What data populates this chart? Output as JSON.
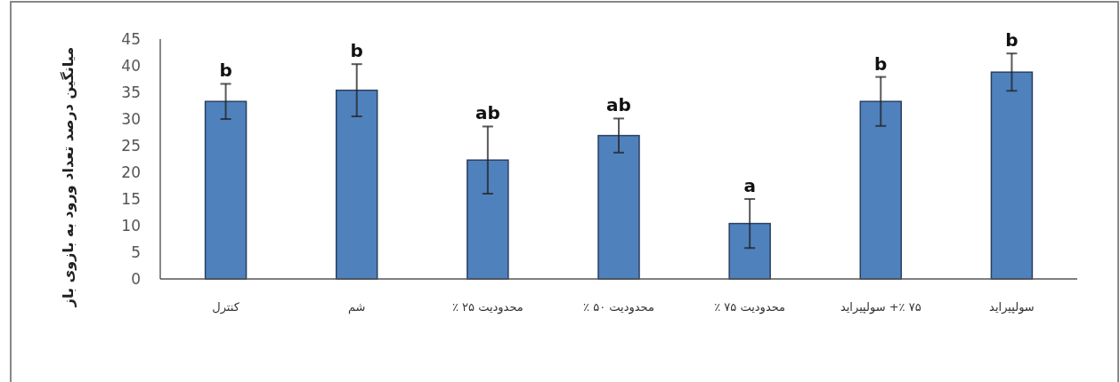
{
  "chart_data": {
    "type": "bar",
    "ylabel": "میانگین درصد تعداد ورود به بازوی باز",
    "categories": [
      "کنترل",
      "شم",
      "محدودیت ۲۵ ٪",
      "محدودیت ۵۰ ٪",
      "محدودیت ۷۵ ٪",
      "۷۵ ٪+ سولپیراید",
      "سولپیراید"
    ],
    "values": [
      33.3,
      35.4,
      22.3,
      26.9,
      10.4,
      33.3,
      38.8
    ],
    "errors": [
      3.3,
      4.9,
      6.3,
      3.2,
      4.6,
      4.6,
      3.5
    ],
    "color": "#4f81bd",
    "ylim": [
      0,
      45
    ],
    "yticks": [
      0,
      5,
      10,
      15,
      20,
      25,
      30,
      35,
      40,
      45
    ],
    "annotations": [
      {
        "text": "b",
        "x": "کنترل",
        "y": 36.6
      },
      {
        "text": "b",
        "x": "شم",
        "y": 40.3
      },
      {
        "text": "ab",
        "x": "محدودیت ۲۵ ٪",
        "y": 28.6
      },
      {
        "text": "ab",
        "x": "محدودیت ۵۰ ٪",
        "y": 30.1
      },
      {
        "text": "a",
        "x": "محدودیت ۷۵ ٪",
        "y": 15.0
      },
      {
        "text": "b",
        "x": "۷۵ ٪+ سولپیراید",
        "y": 37.9
      },
      {
        "text": "b",
        "x": "سولپیراید",
        "y": 42.3
      }
    ]
  }
}
